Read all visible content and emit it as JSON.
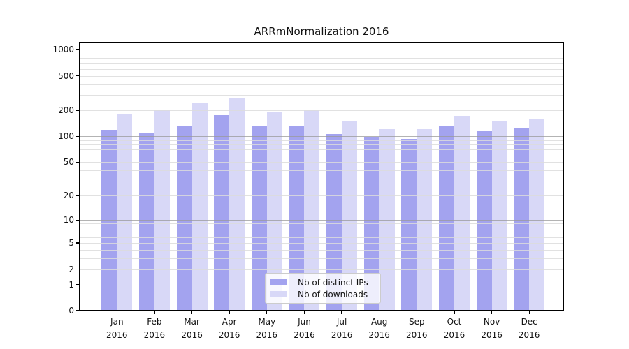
{
  "title": "ARRmNormalization 2016",
  "colors": {
    "distinct_ips_bar": "#a3a3ef",
    "downloads_bar": "#d8d8f7",
    "major_gridline": "#9a9a9a",
    "minor_gridline": "#dcdcdc",
    "axis_frame": "#000000",
    "background": "#ffffff"
  },
  "legend": {
    "items": [
      {
        "label": "Nb of distinct IPs",
        "swatch_color": "#a3a3ef"
      },
      {
        "label": "Nb of downloads",
        "swatch_color": "#d8d8f7"
      }
    ]
  },
  "chart_data": {
    "type": "bar",
    "title": "ARRmNormalization 2016",
    "categories": [
      "Jan 2016",
      "Feb 2016",
      "Mar 2016",
      "Apr 2016",
      "May 2016",
      "Jun 2016",
      "Jul 2016",
      "Aug 2016",
      "Sep 2016",
      "Oct 2016",
      "Nov 2016",
      "Dec 2016"
    ],
    "series": [
      {
        "name": "Nb of distinct IPs",
        "color": "#a3a3ef",
        "values": [
          118,
          110,
          130,
          175,
          132,
          132,
          106,
          98,
          93,
          131,
          115,
          125
        ]
      },
      {
        "name": "Nb of downloads",
        "color": "#d8d8f7",
        "values": [
          182,
          200,
          245,
          273,
          190,
          205,
          150,
          120,
          122,
          173,
          152,
          160
        ]
      }
    ],
    "xlabel": "",
    "ylabel": "",
    "yscale": "log1p",
    "yticks": [
      0,
      1,
      2,
      5,
      10,
      20,
      50,
      100,
      200,
      500,
      1000
    ],
    "ylim": [
      0,
      1230
    ],
    "grid": "major-and-minor, drawn above bars",
    "legend_position": "lower center inside plot"
  }
}
